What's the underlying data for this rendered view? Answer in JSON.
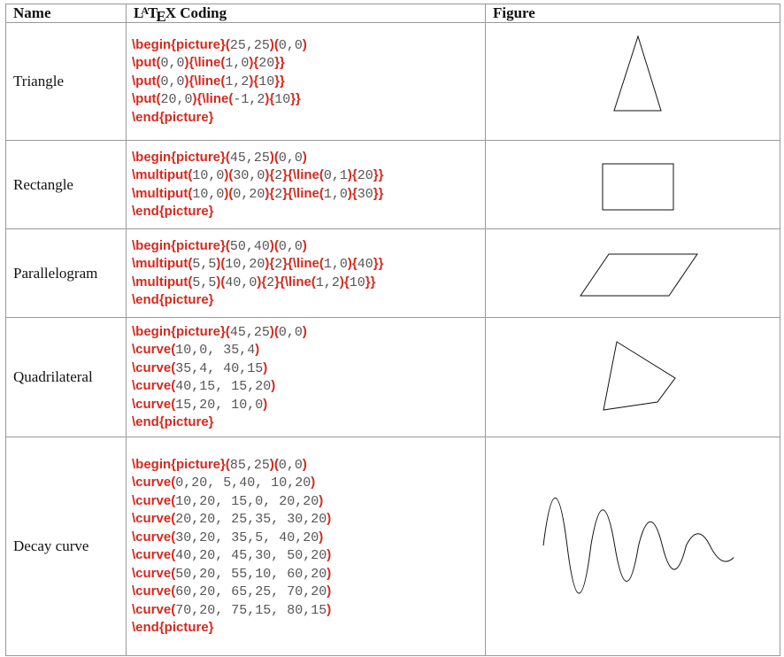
{
  "table": {
    "headers": [
      "Name",
      "LaTeX Coding",
      "Figure"
    ],
    "rows": [
      {
        "name": "Triangle",
        "code": [
          "\\begin{picture}(25,25)(0,0)",
          "\\put(0,0){\\line(1,0){20}}",
          "\\put(0,0){\\line(1,2){10}}",
          "\\put(20,0){\\line(-1,2){10}}",
          "\\end{picture}"
        ]
      },
      {
        "name": "Rectangle",
        "code": [
          "\\begin{picture}(45,25)(0,0)",
          "\\multiput(10,0)(30,0){2}{\\line(0,1){20}}",
          "\\multiput(10,0)(0,20){2}{\\line(1,0){30}}",
          "\\end{picture}"
        ]
      },
      {
        "name": "Parallelogram",
        "code": [
          "\\begin{picture}(50,40)(0,0)",
          "\\multiput(5,5)(10,20){2}{\\line(1,0){40}}",
          "\\multiput(5,5)(40,0){2}{\\line(1,2){10}}",
          "\\end{picture}"
        ]
      },
      {
        "name": "Quadrilateral",
        "code": [
          "\\begin{picture}(45,25)(0,0)",
          "\\curve(10,0, 35,4)",
          "\\curve(35,4, 40,15)",
          "\\curve(40,15, 15,20)",
          "\\curve(15,20, 10,0)",
          "\\end{picture}"
        ]
      },
      {
        "name": "Decay curve",
        "code": [
          "\\begin{picture}(85,25)(0,0)",
          "\\curve(0,20, 5,40, 10,20)",
          "\\curve(10,20, 15,0, 20,20)",
          "\\curve(20,20, 25,35, 30,20)",
          "\\curve(30,20, 35,5, 40,20)",
          "\\curve(40,20, 45,30, 50,20)",
          "\\curve(50,20, 55,10, 60,20)",
          "\\curve(60,20, 65,25, 70,20)",
          "\\curve(70,20, 75,15, 80,15)",
          "\\end{picture}"
        ]
      }
    ]
  }
}
